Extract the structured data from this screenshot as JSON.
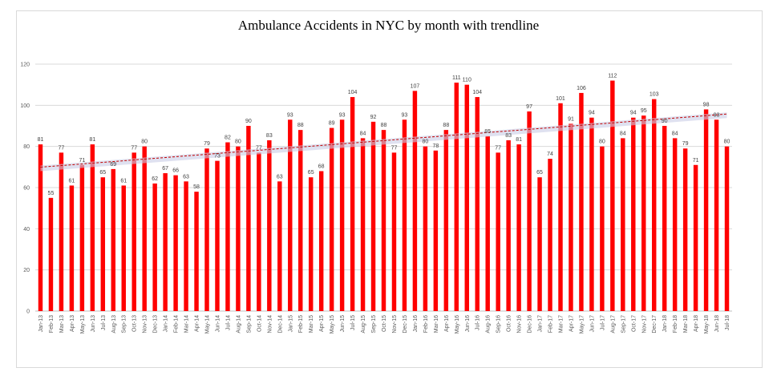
{
  "chart_data": {
    "type": "bar",
    "title": "Ambulance Accidents in NYC by month with trendline",
    "xlabel": "",
    "ylabel": "",
    "ylim": [
      0,
      120
    ],
    "yticks": [
      0,
      20,
      40,
      60,
      80,
      100,
      120
    ],
    "grid": true,
    "legend": "none",
    "bar_color": "#ff0000",
    "trendline_color": "#c00000",
    "trendline_style": "dashed, linear",
    "categories": [
      "Jan-13",
      "Feb-13",
      "Mar-13",
      "Apr-13",
      "May-13",
      "Jun-13",
      "Jul-13",
      "Aug-13",
      "Sep-13",
      "Oct-13",
      "Nov-13",
      "Dec-13",
      "Jan-14",
      "Feb-14",
      "Mar-14",
      "Apr-14",
      "May-14",
      "Jun-14",
      "Jul-14",
      "Aug-14",
      "Sep-14",
      "Oct-14",
      "Nov-14",
      "Dec-14",
      "Jan-15",
      "Feb-15",
      "Mar-15",
      "Apr-15",
      "May-15",
      "Jun-15",
      "Jul-15",
      "Aug-15",
      "Sep-15",
      "Oct-15",
      "Nov-15",
      "Dec-15",
      "Jan-16",
      "Feb-16",
      "Mar-16",
      "Apr-16",
      "May-16",
      "Jun-16",
      "Jul-16",
      "Aug-16",
      "Sep-16",
      "Oct-16",
      "Nov-16",
      "Dec-16",
      "Jan-17",
      "Feb-17",
      "Mar-17",
      "Apr-17",
      "May-17",
      "Jun-17",
      "Jul-17",
      "Aug-17",
      "Sep-17",
      "Oct-17",
      "Nov-17",
      "Dec-17",
      "Jan-18",
      "Feb-18",
      "Mar-18",
      "Apr-18",
      "May-18",
      "Jun-18",
      "Jul-18"
    ],
    "values": [
      81,
      55,
      77,
      61,
      71,
      81,
      65,
      69,
      61,
      77,
      80,
      62,
      67,
      66,
      63,
      58,
      79,
      73,
      82,
      80,
      90,
      77,
      83,
      63,
      93,
      88,
      65,
      68,
      89,
      93,
      104,
      84,
      92,
      88,
      77,
      93,
      107,
      80,
      78,
      88,
      111,
      110,
      104,
      85,
      77,
      83,
      81,
      97,
      65,
      74,
      101,
      91,
      106,
      94,
      80,
      112,
      84,
      94,
      95,
      103,
      90,
      84,
      79,
      71,
      98,
      93,
      80
    ]
  }
}
